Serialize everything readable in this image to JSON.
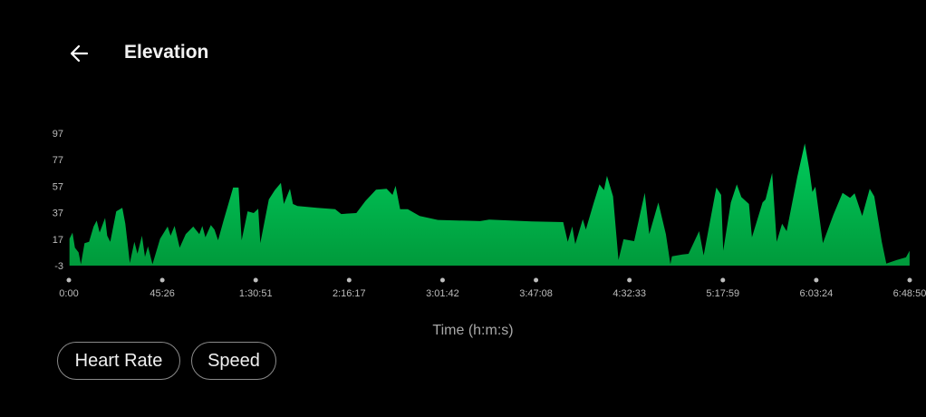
{
  "header": {
    "title": "Elevation",
    "back_icon": "arrow-left-icon"
  },
  "colors": {
    "area_top": "#00cc5c",
    "area_bottom": "#009a3b",
    "background": "#000000"
  },
  "chart_data": {
    "type": "area",
    "title": "",
    "xlabel": "Time (h:m:s)",
    "ylabel": "",
    "ylim": [
      -3,
      97
    ],
    "xlim": [
      0,
      24530
    ],
    "y_ticks": [
      "-3",
      "17",
      "37",
      "57",
      "77",
      "97"
    ],
    "x_ticks": [
      "0:00",
      "45:26",
      "1:30:51",
      "2:16:17",
      "3:01:42",
      "3:47:08",
      "4:32:33",
      "5:17:59",
      "6:03:24",
      "6:48:50"
    ],
    "grid": false,
    "x_seconds": [
      18,
      106,
      177,
      283,
      352,
      457,
      589,
      722,
      811,
      899,
      1057,
      1118,
      1208,
      1382,
      1559,
      1647,
      1779,
      1911,
      2001,
      2133,
      2220,
      2307,
      2440,
      2662,
      2881,
      2969,
      3084,
      3232,
      3409,
      3629,
      3806,
      3893,
      3983,
      4141,
      4247,
      4353,
      4512,
      4792,
      4950,
      5040,
      5215,
      5392,
      5524,
      5585,
      5833,
      6008,
      6185,
      6272,
      6449,
      6537,
      6668,
      7242,
      7770,
      7947,
      8386,
      8651,
      8960,
      9269,
      9443,
      9533,
      9665,
      9885,
      10236,
      10765,
      11998,
      12262,
      13497,
      14422,
      14554,
      14687,
      14774,
      14993,
      15083,
      15302,
      15480,
      15612,
      15699,
      15876,
      16035,
      16183,
      16492,
      16801,
      16933,
      17198,
      17417,
      17550,
      17594,
      17901,
      18078,
      18387,
      18519,
      18889,
      19030,
      19090,
      19312,
      19487,
      19619,
      19841,
      19928,
      20238,
      20325,
      20518,
      20650,
      20808,
      20941,
      21250,
      21469,
      21601,
      21691,
      21778,
      21997,
      22306,
      22570,
      22790,
      22922,
      23144,
      23364,
      23496,
      23716,
      23848,
      24157,
      24421,
      24527
    ],
    "elevation": [
      17.3,
      21.9,
      10.5,
      7,
      -2,
      14,
      15,
      26.5,
      31,
      22,
      33,
      19.6,
      15,
      38,
      40.6,
      28.7,
      -1,
      15,
      6,
      19.6,
      3.6,
      11.6,
      -2,
      17.3,
      26.5,
      19.6,
      27,
      10.5,
      20.8,
      26.5,
      20.8,
      27,
      18.4,
      27.6,
      24.2,
      16.2,
      31,
      56,
      56,
      16.2,
      38,
      36.7,
      40,
      14,
      47,
      54,
      59.5,
      43.6,
      55,
      43.6,
      42,
      40.6,
      39.7,
      36,
      36.7,
      45.8,
      54.3,
      55,
      50.4,
      57.3,
      39.7,
      39.7,
      34.5,
      31.5,
      30.6,
      31.7,
      30.4,
      29.9,
      15,
      26.5,
      13.2,
      32,
      24.2,
      43.6,
      58.4,
      54,
      64.8,
      49.3,
      1.3,
      16.9,
      15.5,
      52,
      20.8,
      44.7,
      20.8,
      -2,
      4,
      5.4,
      5.9,
      23,
      4.7,
      56,
      50.4,
      8.2,
      44.7,
      58.4,
      48.8,
      43.6,
      18.4,
      44.7,
      47,
      67,
      15,
      28.7,
      23,
      64,
      89.3,
      69.8,
      52.7,
      56.6,
      14,
      35.6,
      52,
      48.2,
      51.6,
      34.5,
      55,
      49.3,
      15,
      -1.4,
      1.3,
      3.2,
      8.2
    ]
  },
  "buttons": {
    "heart_rate": "Heart Rate",
    "speed": "Speed"
  }
}
